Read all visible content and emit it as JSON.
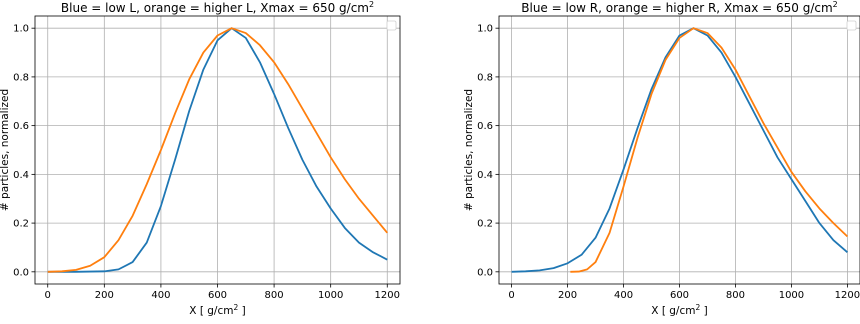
{
  "chart_data": [
    {
      "type": "line",
      "title": "Blue = low L, orange = higher L, Xmax = 650 g/cm",
      "title_superscript": "2",
      "xlabel": "X [ g/cm",
      "xlabel_superscript": "2",
      "xlabel_end": " ]",
      "ylabel": "# particles, normalized",
      "xlim": [
        -45,
        1245
      ],
      "ylim": [
        -0.05,
        1.05
      ],
      "xticks": [
        0,
        200,
        400,
        600,
        800,
        1000,
        1200
      ],
      "yticks": [
        0.0,
        0.2,
        0.4,
        0.6,
        0.8,
        1.0
      ],
      "xtick_labels": [
        "0",
        "200",
        "400",
        "600",
        "800",
        "1000",
        "1200"
      ],
      "ytick_labels": [
        "0.0",
        "0.2",
        "0.4",
        "0.6",
        "0.8",
        "1.0"
      ],
      "grid": true,
      "legend": "top-right (empty)",
      "series": [
        {
          "color": "#1f77b4",
          "x": [
            0,
            100,
            200,
            250,
            300,
            350,
            400,
            450,
            500,
            550,
            600,
            650,
            700,
            750,
            800,
            850,
            900,
            950,
            1000,
            1050,
            1100,
            1150,
            1200
          ],
          "y": [
            0.0,
            0.0,
            0.002,
            0.01,
            0.04,
            0.12,
            0.27,
            0.46,
            0.66,
            0.83,
            0.95,
            1.0,
            0.96,
            0.86,
            0.73,
            0.59,
            0.46,
            0.35,
            0.26,
            0.18,
            0.12,
            0.08,
            0.05
          ]
        },
        {
          "color": "#ff7f0e",
          "x": [
            0,
            50,
            100,
            150,
            200,
            250,
            300,
            350,
            400,
            450,
            500,
            550,
            600,
            650,
            700,
            750,
            800,
            850,
            900,
            950,
            1000,
            1050,
            1100,
            1150,
            1200
          ],
          "y": [
            0.0,
            0.002,
            0.008,
            0.025,
            0.06,
            0.13,
            0.23,
            0.36,
            0.5,
            0.65,
            0.79,
            0.9,
            0.97,
            1.0,
            0.98,
            0.93,
            0.86,
            0.77,
            0.67,
            0.57,
            0.47,
            0.38,
            0.3,
            0.23,
            0.16
          ]
        }
      ]
    },
    {
      "type": "line",
      "title": "Blue = low R, orange = higher R, Xmax = 650 g/cm",
      "title_superscript": "2",
      "xlabel": "X [ g/cm",
      "xlabel_superscript": "2",
      "xlabel_end": " ]",
      "ylabel": "# particles, normalized",
      "xlim": [
        -45,
        1245
      ],
      "ylim": [
        -0.05,
        1.05
      ],
      "xticks": [
        0,
        200,
        400,
        600,
        800,
        1000,
        1200
      ],
      "yticks": [
        0.0,
        0.2,
        0.4,
        0.6,
        0.8,
        1.0
      ],
      "xtick_labels": [
        "0",
        "200",
        "400",
        "600",
        "800",
        "1000",
        "1200"
      ],
      "ytick_labels": [
        "0.0",
        "0.2",
        "0.4",
        "0.6",
        "0.8",
        "1.0"
      ],
      "grid": true,
      "legend": "top-right (empty)",
      "series": [
        {
          "color": "#1f77b4",
          "x": [
            0,
            50,
            100,
            150,
            200,
            250,
            300,
            350,
            400,
            450,
            500,
            550,
            600,
            650,
            700,
            750,
            800,
            850,
            900,
            950,
            1000,
            1050,
            1100,
            1150,
            1200
          ],
          "y": [
            0.0,
            0.002,
            0.006,
            0.015,
            0.035,
            0.07,
            0.14,
            0.26,
            0.42,
            0.59,
            0.75,
            0.88,
            0.97,
            1.0,
            0.97,
            0.9,
            0.8,
            0.69,
            0.58,
            0.47,
            0.38,
            0.29,
            0.2,
            0.13,
            0.08
          ]
        },
        {
          "color": "#ff7f0e",
          "x": [
            210,
            240,
            270,
            300,
            350,
            400,
            450,
            500,
            550,
            600,
            650,
            700,
            750,
            800,
            850,
            900,
            950,
            1000,
            1050,
            1100,
            1150,
            1200
          ],
          "y": [
            0.0,
            0.001,
            0.01,
            0.04,
            0.16,
            0.35,
            0.55,
            0.73,
            0.87,
            0.96,
            1.0,
            0.98,
            0.92,
            0.83,
            0.72,
            0.61,
            0.51,
            0.41,
            0.33,
            0.26,
            0.2,
            0.145
          ]
        }
      ]
    }
  ]
}
